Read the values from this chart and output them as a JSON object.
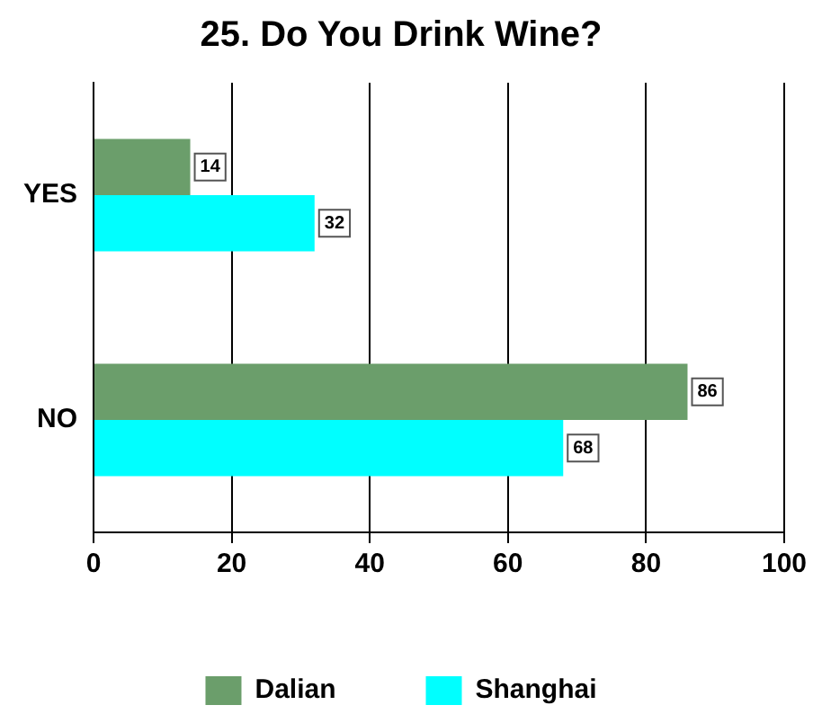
{
  "chart_data": {
    "type": "bar",
    "orientation": "horizontal",
    "title": "25. Do You Drink Wine?",
    "categories": [
      "YES",
      "NO"
    ],
    "series": [
      {
        "name": "Dalian",
        "color": "#6b9e6b",
        "values": [
          14,
          86
        ]
      },
      {
        "name": "Shanghai",
        "color": "#00ffff",
        "values": [
          32,
          68
        ]
      }
    ],
    "xlim": [
      0,
      100
    ],
    "xticks": [
      0,
      20,
      40,
      60,
      80,
      100
    ],
    "grid": "x",
    "legend": "bottom",
    "data_labels": true
  }
}
